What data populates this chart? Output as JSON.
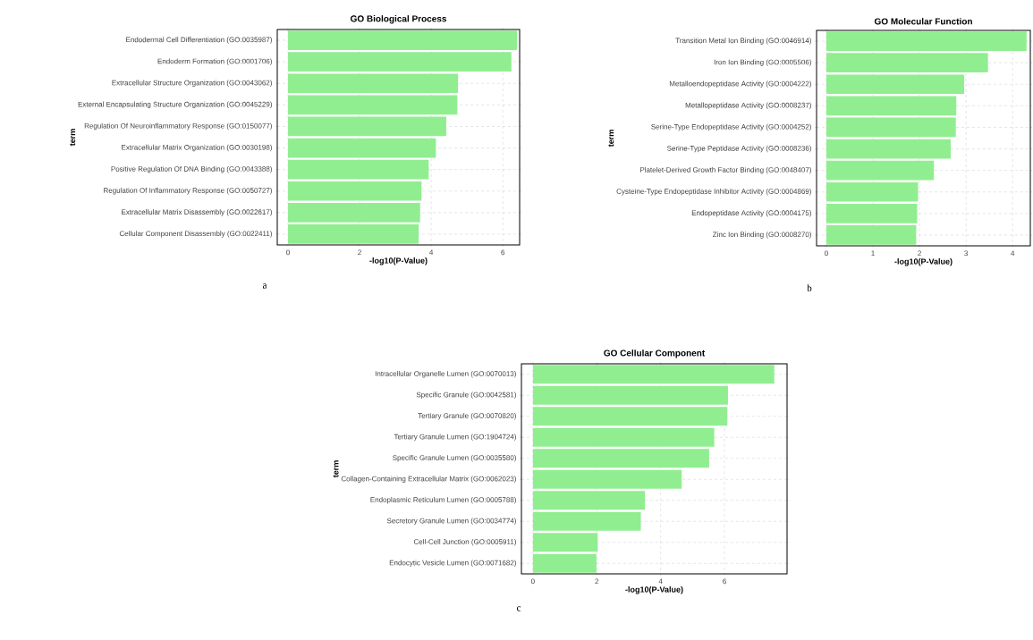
{
  "chart_data": [
    {
      "type": "bar",
      "orientation": "horizontal",
      "title": "GO Biological Process",
      "xlabel": "-log10(P-Value)",
      "ylabel": "term",
      "categories": [
        "Endodermal Cell Differentiation (GO:0035987)",
        "Endoderm Formation (GO:0001706)",
        "Extracellular Structure Organization (GO:0043062)",
        "External Encapsulating Structure Organization (GO:0045229)",
        "Regulation Of Neuroinflammatory Response (GO:0150077)",
        "Extracellular Matrix Organization (GO:0030198)",
        "Positive Regulation Of DNA Binding (GO:0043388)",
        "Regulation Of Inflammatory Response (GO:0050727)",
        "Extracellular Matrix Disassembly (GO:0022617)",
        "Cellular Component Disassembly (GO:0022411)"
      ],
      "values": [
        6.4,
        6.24,
        4.75,
        4.73,
        4.42,
        4.13,
        3.93,
        3.73,
        3.69,
        3.65
      ],
      "color": "#90ee90",
      "xlim": [
        -0.3,
        6.47
      ],
      "xticks": [
        0,
        2,
        4,
        6
      ],
      "grid": true,
      "annotations": [
        "a"
      ]
    },
    {
      "type": "bar",
      "orientation": "horizontal",
      "title": "GO Molecular Function",
      "xlabel": "-log10(P-Value)",
      "ylabel": "term",
      "categories": [
        "Transition Metal Ion Binding (GO:0046914)",
        "Iron Ion Binding (GO:0005506)",
        "Metalloendopeptidase Activity (GO:0004222)",
        "Metallopeptidase Activity (GO:0008237)",
        "Serine-Type Endopeptidase Activity (GO:0004252)",
        "Serine-Type Peptidase Activity (GO:0008236)",
        "Platelet-Derived Growth Factor Binding (GO:0048407)",
        "Cysteine-Type Endopeptidase Inhibitor Activity (GO:0004869)",
        "Endopeptidase Activity (GO:0004175)",
        "Zinc Ion Binding (GO:0008270)"
      ],
      "values": [
        4.3,
        3.47,
        2.96,
        2.79,
        2.78,
        2.67,
        2.31,
        1.97,
        1.95,
        1.93
      ],
      "color": "#90ee90",
      "xlim": [
        -0.21,
        4.38
      ],
      "xticks": [
        0,
        1,
        2,
        3,
        4
      ],
      "grid": true,
      "annotations": [
        "b"
      ]
    },
    {
      "type": "bar",
      "orientation": "horizontal",
      "title": "GO Cellular Component",
      "xlabel": "-log10(P-Value)",
      "ylabel": "term",
      "categories": [
        "Intracellular Organelle Lumen (GO:0070013)",
        "Specific Granule (GO:0042581)",
        "Tertiary Granule (GO:0070820)",
        "Tertiary Granule Lumen (GO:1904724)",
        "Specific Granule Lumen (GO:0035580)",
        "Collagen-Containing Extracellular Matrix (GO:0062023)",
        "Endoplasmic Reticulum Lumen (GO:0005788)",
        "Secretory Granule Lumen (GO:0034774)",
        "Cell-Cell Junction (GO:0005911)",
        "Endocytic Vesicle Lumen (GO:0071682)"
      ],
      "values": [
        7.56,
        6.11,
        6.09,
        5.68,
        5.52,
        4.66,
        3.51,
        3.38,
        2.03,
        1.99
      ],
      "color": "#90ee90",
      "xlim": [
        -0.36,
        7.96
      ],
      "xticks": [
        0,
        2,
        4,
        6
      ],
      "grid": true,
      "annotations": [
        "c"
      ]
    }
  ]
}
